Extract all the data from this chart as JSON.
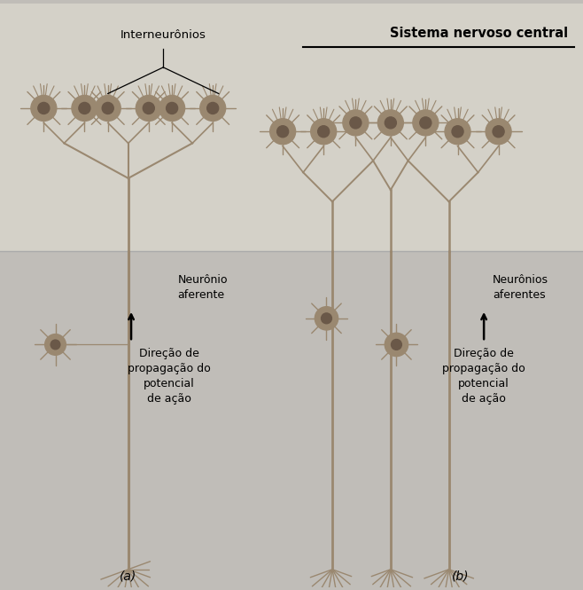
{
  "bg_color": "#c0bdb8",
  "upper_bg_color": "#d4d1c8",
  "neuron_color": "#9a8870",
  "neuron_dark": "#6a5848",
  "title": "Sistema nervoso central",
  "label_interneuronios": "Interneurônios",
  "label_a_neuron": "Neurônio\naferente",
  "label_b_neuron": "Neurônios\naferentes",
  "label_a_direction": "Direção de\npropagação do\npotencial\nde ação",
  "label_b_direction": "Direção de\npropagação do\npotencial\nde ação",
  "label_a": "(a)",
  "label_b": "(b)",
  "fig_width": 6.58,
  "fig_height": 6.65,
  "dpi": 100
}
